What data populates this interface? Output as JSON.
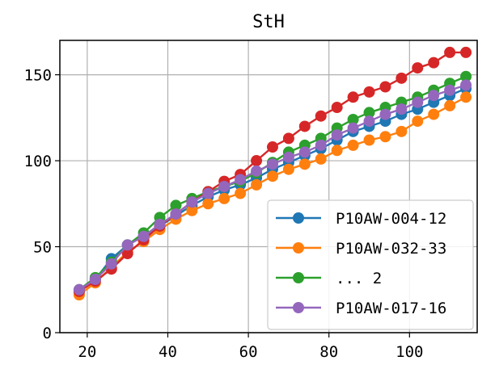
{
  "chart_data": {
    "type": "line",
    "title": "StH",
    "xlabel": "",
    "ylabel": "",
    "xlim": [
      13.2,
      116.8
    ],
    "ylim": [
      0,
      170
    ],
    "xticks": [
      20,
      40,
      60,
      80,
      100
    ],
    "yticks": [
      0,
      50,
      100,
      150
    ],
    "grid": true,
    "legend_position": "lower-right",
    "x": [
      18,
      22,
      26,
      30,
      34,
      38,
      42,
      46,
      50,
      54,
      58,
      62,
      66,
      70,
      74,
      78,
      82,
      86,
      90,
      94,
      98,
      102,
      106,
      110,
      114
    ],
    "series": [
      {
        "name": "P10AW-004-12",
        "color": "#1f77b4",
        "legend": true,
        "values": [
          24,
          31,
          43,
          51,
          56,
          62,
          68,
          74,
          79,
          83,
          86,
          90,
          95,
          99,
          103,
          107,
          112,
          117,
          120,
          123,
          127,
          130,
          134,
          138,
          142
        ]
      },
      {
        "name": "P10AW-032-33",
        "color": "#ff7f0e",
        "legend": true,
        "values": [
          22,
          29,
          38,
          47,
          53,
          60,
          66,
          71,
          75,
          78,
          81,
          86,
          91,
          95,
          98,
          101,
          106,
          109,
          112,
          114,
          117,
          123,
          127,
          132,
          137
        ]
      },
      {
        "name": "... 2",
        "color": "#2ca02c",
        "legend": true,
        "values": [
          25,
          32,
          41,
          51,
          58,
          67,
          74,
          78,
          82,
          85,
          88,
          93,
          99,
          105,
          109,
          113,
          119,
          124,
          128,
          131,
          134,
          137,
          141,
          145,
          149
        ]
      },
      {
        "name": "",
        "color": "#d62728",
        "legend": false,
        "values": [
          24,
          30,
          37,
          46,
          54,
          62,
          69,
          76,
          82,
          88,
          92,
          100,
          108,
          113,
          120,
          126,
          131,
          137,
          140,
          143,
          148,
          154,
          157,
          163,
          163
        ]
      },
      {
        "name": "P10AW-017-16",
        "color": "#9467bd",
        "legend": true,
        "values": [
          25,
          31,
          40,
          51,
          56,
          63,
          69,
          76,
          81,
          85,
          89,
          94,
          98,
          102,
          105,
          109,
          115,
          119,
          123,
          127,
          130,
          134,
          138,
          141,
          144
        ]
      }
    ]
  }
}
